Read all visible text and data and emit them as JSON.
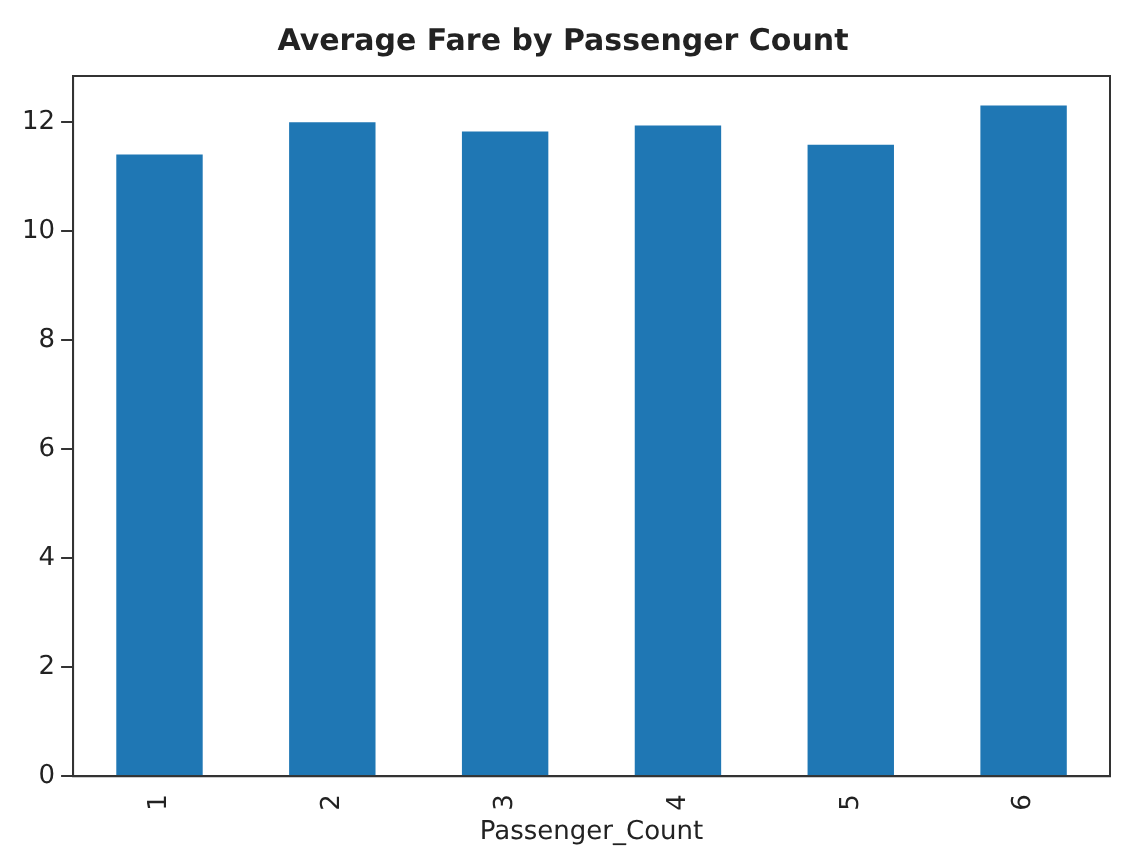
{
  "chart_data": {
    "type": "bar",
    "title": "Average Fare by Passenger Count",
    "xlabel": "Passenger_Count",
    "categories": [
      "1",
      "2",
      "3",
      "4",
      "5",
      "6"
    ],
    "values": [
      11.41,
      12.0,
      11.83,
      11.94,
      11.59,
      12.31
    ],
    "color": "#1f77b4",
    "ylim": [
      0,
      12.85
    ],
    "yticks": [
      0,
      2,
      4,
      6,
      8,
      10,
      12
    ],
    "grid": false,
    "legend": false
  }
}
